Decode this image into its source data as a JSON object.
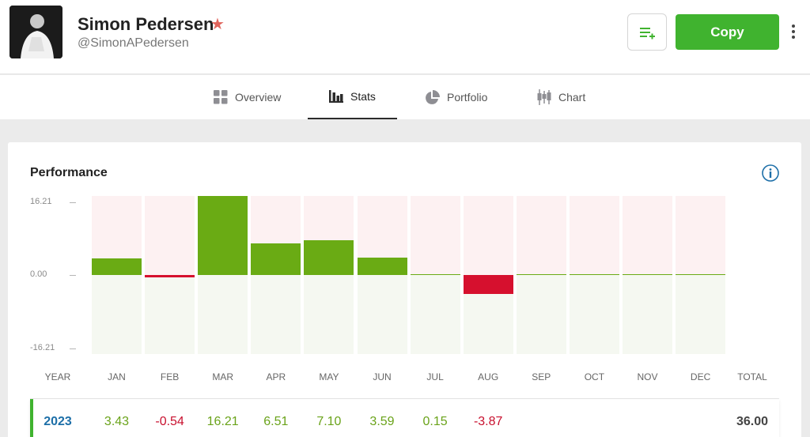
{
  "profile": {
    "name": "Simon Pedersen",
    "handle": "@SimonAPedersen"
  },
  "actions": {
    "copy_label": "Copy"
  },
  "tabs": [
    {
      "label": "Overview",
      "icon": "grid-icon"
    },
    {
      "label": "Stats",
      "icon": "bar-chart-icon",
      "active": true
    },
    {
      "label": "Portfolio",
      "icon": "pie-chart-icon"
    },
    {
      "label": "Chart",
      "icon": "candlestick-icon"
    }
  ],
  "performance": {
    "title": "Performance",
    "y_ticks": [
      "16.21",
      "0.00",
      "-16.21"
    ],
    "headers": [
      "YEAR",
      "JAN",
      "FEB",
      "MAR",
      "APR",
      "MAY",
      "JUN",
      "JUL",
      "AUG",
      "SEP",
      "OCT",
      "NOV",
      "DEC",
      "TOTAL"
    ],
    "row": {
      "year": "2023",
      "months": [
        "3.43",
        "-0.54",
        "16.21",
        "6.51",
        "7.10",
        "3.59",
        "0.15",
        "-3.87",
        "",
        "",
        "",
        ""
      ],
      "total": "36.00"
    }
  },
  "chart_data": {
    "type": "bar",
    "categories": [
      "JAN",
      "FEB",
      "MAR",
      "APR",
      "MAY",
      "JUN",
      "JUL",
      "AUG",
      "SEP",
      "OCT",
      "NOV",
      "DEC"
    ],
    "values": [
      3.43,
      -0.54,
      16.21,
      6.51,
      7.1,
      3.59,
      0.15,
      -3.87,
      0,
      0,
      0,
      0
    ],
    "ylim": [
      -16.21,
      16.21
    ],
    "title": "Performance",
    "colors": {
      "positive": "#6aab14",
      "negative": "#d6102e"
    }
  }
}
